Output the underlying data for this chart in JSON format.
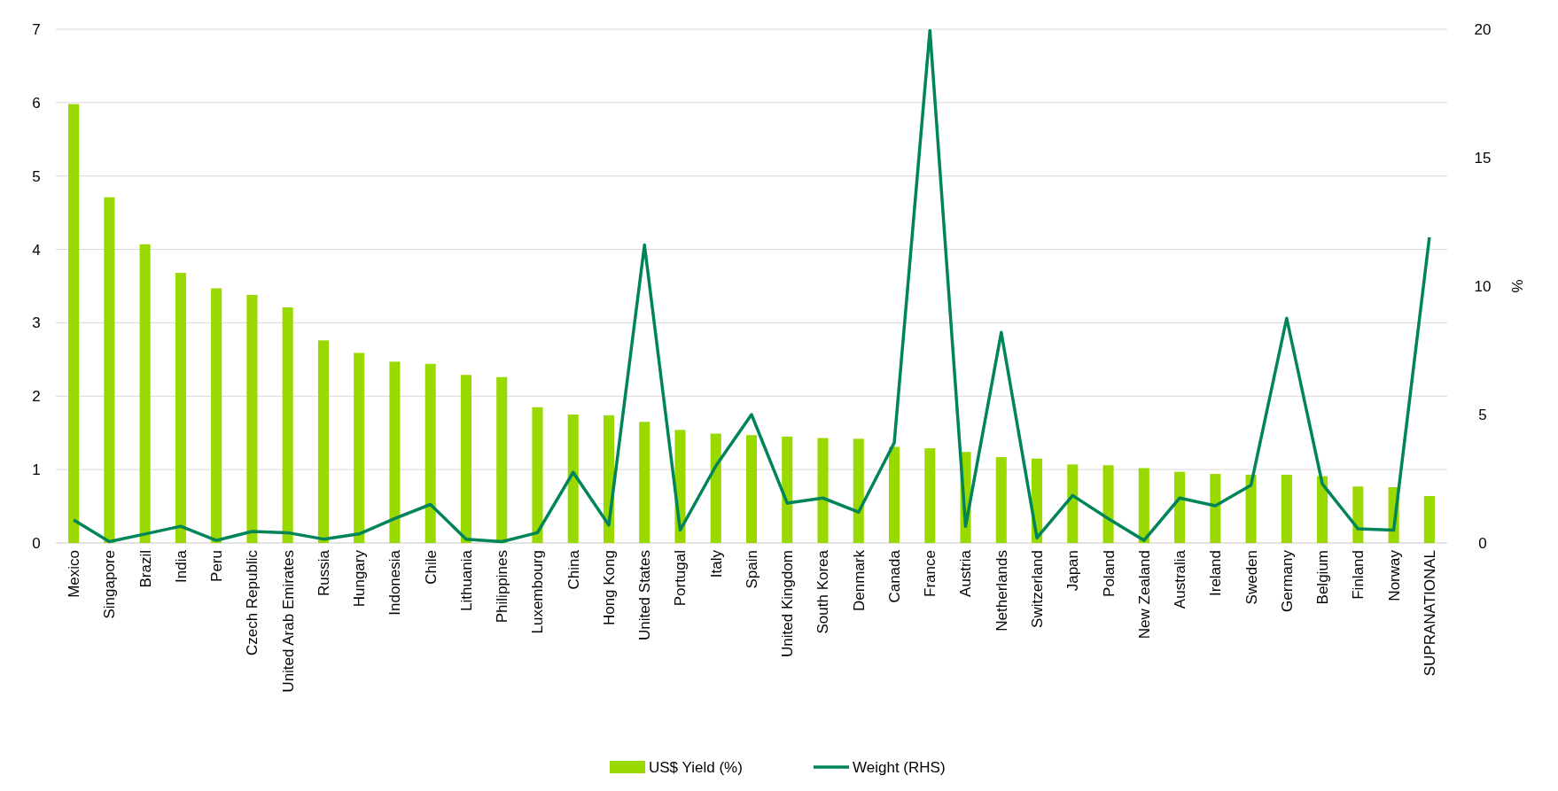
{
  "chart_data": {
    "type": "bar",
    "categories": [
      "Mexico",
      "Singapore",
      "Brazil",
      "India",
      "Peru",
      "Czech Republic",
      "United Arab Emirates",
      "Russia",
      "Hungary",
      "Indonesia",
      "Chile",
      "Lithuania",
      "Philippines",
      "Luxembourg",
      "China",
      "Hong Kong",
      "United States",
      "Portugal",
      "Italy",
      "Spain",
      "United Kingdom",
      "South Korea",
      "Denmark",
      "Canada",
      "France",
      "Austria",
      "Netherlands",
      "Switzerland",
      "Japan",
      "Poland",
      "New Zealand",
      "Australia",
      "Ireland",
      "Sweden",
      "Germany",
      "Belgium",
      "Finland",
      "Norway",
      "SUPRANATIONAL"
    ],
    "series": [
      {
        "name": "US$ Yield (%)",
        "color": "#99d900",
        "values": [
          5.98,
          4.71,
          4.07,
          3.68,
          3.47,
          3.38,
          3.21,
          2.76,
          2.59,
          2.47,
          2.44,
          2.29,
          2.26,
          1.85,
          1.75,
          1.74,
          1.65,
          1.54,
          1.49,
          1.47,
          1.45,
          1.43,
          1.42,
          1.31,
          1.29,
          1.24,
          1.17,
          1.15,
          1.07,
          1.06,
          1.02,
          0.97,
          0.94,
          0.93,
          0.93,
          0.91,
          0.77,
          0.76,
          0.64
        ]
      },
      {
        "name": "Weight (RHS)",
        "type": "line",
        "axis": "y2",
        "color": "#00845a",
        "values": [
          0.9,
          0.05,
          0.35,
          0.65,
          0.1,
          0.45,
          0.4,
          0.15,
          0.35,
          0.95,
          1.5,
          0.15,
          0.05,
          0.4,
          2.75,
          0.7,
          11.6,
          0.5,
          3.0,
          5.0,
          1.55,
          1.75,
          1.2,
          3.9,
          19.95,
          0.65,
          8.2,
          0.2,
          1.85,
          0.95,
          0.1,
          1.75,
          1.45,
          2.25,
          8.75,
          2.3,
          0.55,
          0.5,
          11.9
        ]
      }
    ],
    "ylim": [
      0,
      7
    ],
    "yticks": [
      0,
      1,
      2,
      3,
      4,
      5,
      6,
      7
    ],
    "y2lim": [
      0,
      20
    ],
    "y2ticks": [
      0,
      5,
      10,
      15,
      20
    ],
    "y2label": "%",
    "grid": "y",
    "legend": "bottom"
  }
}
